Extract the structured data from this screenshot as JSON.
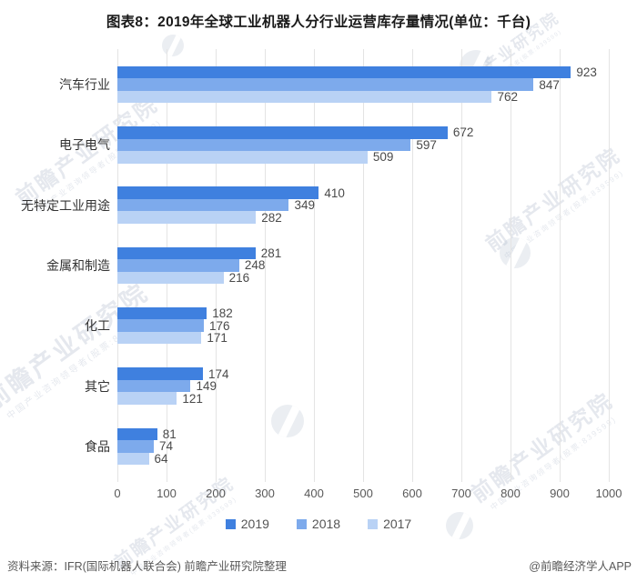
{
  "title": "图表8：2019年全球工业机器人分行业运营库存量情况(单位：千台)",
  "chart_data": {
    "type": "bar",
    "orientation": "horizontal",
    "title": "图表8：2019年全球工业机器人分行业运营库存量情况(单位：千台)",
    "unit": "千台",
    "categories": [
      "汽车行业",
      "电子电气",
      "无特定工业用途",
      "金属和制造",
      "化工",
      "其它",
      "食品"
    ],
    "series": [
      {
        "name": "2019",
        "color": "#3f80df",
        "values": [
          923,
          672,
          410,
          281,
          182,
          174,
          81
        ]
      },
      {
        "name": "2018",
        "color": "#7daaec",
        "values": [
          847,
          597,
          349,
          248,
          176,
          149,
          74
        ]
      },
      {
        "name": "2017",
        "color": "#b9d2f5",
        "values": [
          762,
          509,
          282,
          216,
          171,
          121,
          64
        ]
      }
    ],
    "xlim": [
      0,
      1000
    ],
    "x_ticks": [
      0,
      100,
      200,
      300,
      400,
      500,
      600,
      700,
      800,
      900,
      1000
    ],
    "grid": "vertical-only",
    "legend_position": "bottom",
    "value_labels": "outside-end"
  },
  "footer": {
    "source": "资料来源：IFR(国际机器人联合会) 前瞻产业研究院整理",
    "credit": "@前瞻经济学人APP"
  },
  "watermark": {
    "main": "前瞻产业研究院",
    "sub": "中国产业咨询领导者(股票:839599)"
  },
  "colors": {
    "background": "#ffffff",
    "grid": "#e4e4e4",
    "title": "#1a1a1a",
    "category_label": "#333333",
    "value_label": "#4a4a4a",
    "tick_label": "#595959",
    "legend_text": "#555555",
    "footer_text": "#595959"
  }
}
